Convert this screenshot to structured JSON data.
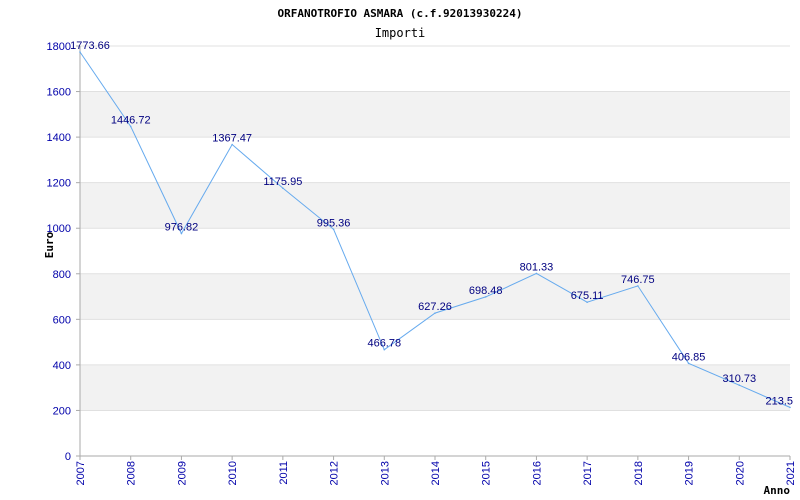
{
  "chart_data": {
    "type": "line",
    "title": "ORFANOTROFIO ASMARA (c.f.92013930224)",
    "subtitle": "Importi",
    "xlabel": "Anno",
    "ylabel": "Euro",
    "ylim": [
      0,
      1800
    ],
    "yticks": [
      "0",
      "200",
      "400",
      "600",
      "800",
      "1000",
      "1200",
      "1400",
      "1600",
      "1800"
    ],
    "ytick_values": [
      0,
      200,
      400,
      600,
      800,
      1000,
      1200,
      1400,
      1600,
      1800
    ],
    "categories": [
      "2007",
      "2008",
      "2009",
      "2010",
      "2011",
      "2012",
      "2013",
      "2014",
      "2015",
      "2016",
      "2017",
      "2018",
      "2019",
      "2020",
      "2021"
    ],
    "values": [
      1773.66,
      1446.72,
      976.82,
      1367.47,
      1175.95,
      995.36,
      466.78,
      627.26,
      698.48,
      801.33,
      675.11,
      746.75,
      406.85,
      310.73,
      213.5
    ],
    "value_labels": [
      "1773.66",
      "1446.72",
      "976.82",
      "1367.47",
      "1175.95",
      "995.36",
      "466.78",
      "627.26",
      "698.48",
      "801.33",
      "675.11",
      "746.75",
      "406.85",
      "310.73",
      "213.5"
    ],
    "grid": true,
    "legend": "none",
    "colors": {
      "line": "#66aaee",
      "band": "#f2f2f2",
      "gridline": "#e0e0e0",
      "axis": "#aaaaaa",
      "tick_text": "#0000aa",
      "data_label": "#000080"
    }
  }
}
